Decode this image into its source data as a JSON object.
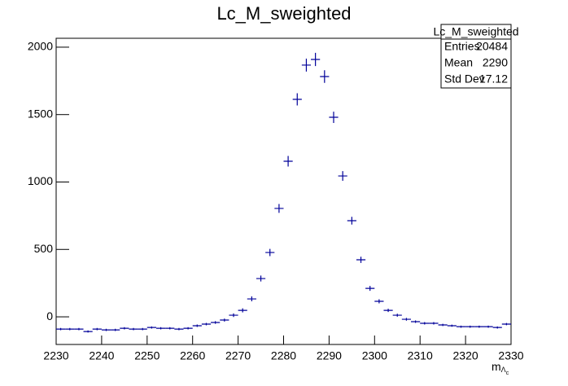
{
  "chart_data": {
    "type": "errorbar",
    "title": "Lc_M_sweighted",
    "x_label": {
      "base": "m",
      "sub": "Λ",
      "subsub": "c"
    },
    "color": "#000099",
    "bin_width": 2,
    "x": [
      2231,
      2233,
      2235,
      2237,
      2239,
      2241,
      2243,
      2245,
      2247,
      2249,
      2251,
      2253,
      2255,
      2257,
      2259,
      2261,
      2263,
      2265,
      2267,
      2269,
      2271,
      2273,
      2275,
      2277,
      2279,
      2281,
      2283,
      2285,
      2287,
      2289,
      2291,
      2293,
      2295,
      2297,
      2299,
      2301,
      2303,
      2305,
      2307,
      2309,
      2311,
      2313,
      2315,
      2317,
      2319,
      2321,
      2323,
      2325,
      2327,
      2329
    ],
    "values": [
      -91,
      -91,
      -91,
      -109,
      -91,
      -97,
      -97,
      -85,
      -91,
      -91,
      -79,
      -85,
      -85,
      -91,
      -85,
      -66,
      -54,
      -42,
      -24,
      12,
      48,
      133,
      284,
      477,
      804,
      1154,
      1613,
      1867,
      1909,
      1782,
      1480,
      1045,
      713,
      423,
      211,
      115,
      48,
      12,
      -18,
      -36,
      -48,
      -48,
      -60,
      -66,
      -73,
      -73,
      -73,
      -73,
      -79,
      -54
    ],
    "errors": [
      8,
      8,
      8,
      8,
      8,
      8,
      8,
      8,
      8,
      8,
      8,
      8,
      8,
      8,
      8,
      9,
      9,
      10,
      11,
      13,
      15,
      18,
      22,
      27,
      33,
      39,
      45,
      48,
      49,
      47,
      42,
      36,
      29,
      23,
      18,
      15,
      12,
      11,
      10,
      9,
      9,
      9,
      8,
      8,
      8,
      8,
      8,
      8,
      8,
      8
    ],
    "xlim": [
      2230,
      2330
    ],
    "ylim": [
      -205,
      2066
    ],
    "xticks": [
      2230,
      2240,
      2250,
      2260,
      2270,
      2280,
      2290,
      2300,
      2310,
      2320,
      2330
    ],
    "yticks": [
      0,
      500,
      1000,
      1500,
      2000
    ],
    "stats": {
      "title": "Lc_M_sweighted",
      "rows": [
        {
          "label": "Entries",
          "value": 20484
        },
        {
          "label": "Mean",
          "value": 2290
        },
        {
          "label": "Std Dev",
          "value": 17.12
        }
      ]
    }
  }
}
